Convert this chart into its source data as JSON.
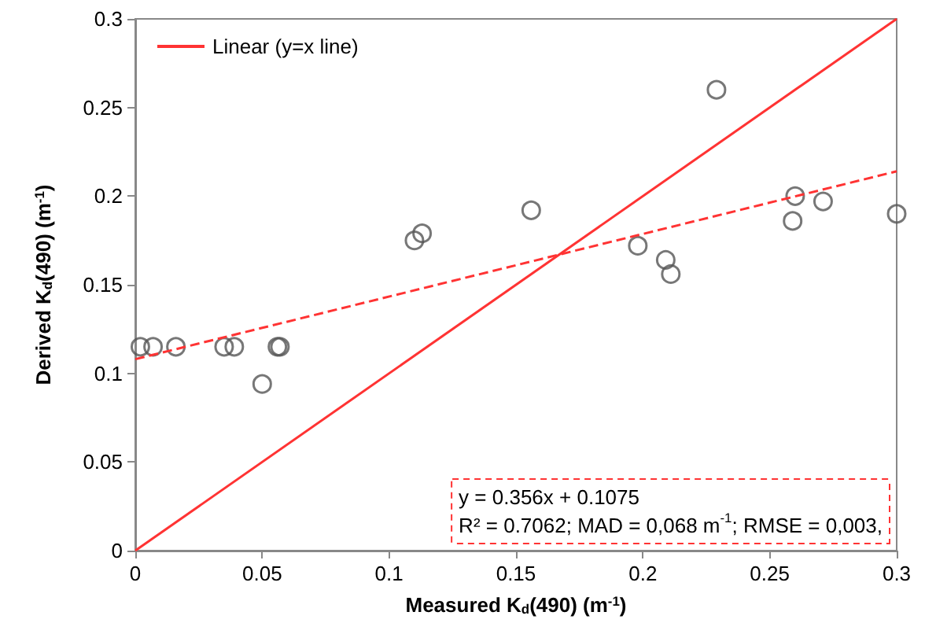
{
  "chart_data": {
    "type": "scatter",
    "xlabel": "Measured K$_{d}$(490) (m$^{-1}$)",
    "ylabel": "Derived K$_{d}$(490) (m$^{-1}$)",
    "xlim": [
      0,
      0.3
    ],
    "xticks": [
      0,
      0.05,
      0.1,
      0.15,
      0.2,
      0.25,
      0.3
    ],
    "ylim": [
      0,
      0.3
    ],
    "yticks": [
      0,
      0.05,
      0.1,
      0.15,
      0.2,
      0.25,
      0.3
    ],
    "grid": false,
    "legend": "top left",
    "marker": "circle",
    "series": [
      {
        "color": "#555555",
        "x": [
          0.002,
          0.007,
          0.016,
          0.035,
          0.039,
          0.056,
          0.057,
          0.05,
          0.11,
          0.113,
          0.156,
          0.198,
          0.209,
          0.211,
          0.229,
          0.259,
          0.26,
          0.271,
          0.3
        ],
        "values": [
          0.115,
          0.115,
          0.115,
          0.115,
          0.115,
          0.115,
          0.115,
          0.094,
          0.175,
          0.179,
          0.192,
          0.172,
          0.164,
          0.156,
          0.26,
          0.186,
          0.2,
          0.197,
          0.19
        ]
      },
      {
        "type": "line",
        "name": "Linear (y=x line)",
        "color": "#ff3333",
        "line_style": "solid",
        "marker": "none",
        "x": [
          0,
          0.3
        ],
        "values": [
          0,
          0.3
        ]
      },
      {
        "type": "line",
        "color": "#ff3333",
        "line_style": "dashed",
        "marker": "none",
        "x": [
          0,
          0.3
        ],
        "values": [
          0.108,
          0.214
        ]
      }
    ],
    "annotations": [
      "y = 0.356x + 0.1075",
      "R² = 0.7062; MAD = 0,068 m$^{-1}$; RMSE = 0,003,"
    ]
  }
}
